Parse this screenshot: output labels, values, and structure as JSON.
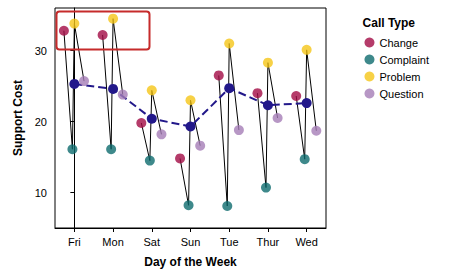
{
  "chart_data": {
    "type": "scatter",
    "x_label": "Day of the Week",
    "y_label": "Support Cost",
    "legend_title": "Call Type",
    "categories": [
      "Fri",
      "Mon",
      "Sat",
      "Sun",
      "Tue",
      "Thur",
      "Wed"
    ],
    "series": [
      {
        "name": "Change",
        "color": "#a30b45",
        "values": [
          32.8,
          32.2,
          19.8,
          14.8,
          26.5,
          24.0,
          23.6
        ]
      },
      {
        "name": "Complaint",
        "color": "#0e6b6e",
        "values": [
          16.1,
          16.1,
          14.5,
          8.2,
          8.1,
          10.7,
          14.7
        ]
      },
      {
        "name": "Problem",
        "color": "#f5c518",
        "values": [
          33.8,
          34.5,
          24.4,
          23.0,
          31.0,
          28.3,
          30.1
        ]
      },
      {
        "name": "Question",
        "color": "#a57db6",
        "values": [
          25.7,
          23.8,
          18.2,
          16.6,
          18.8,
          20.5,
          18.7
        ]
      }
    ],
    "means": [
      25.3,
      24.6,
      20.4,
      19.3,
      24.7,
      22.3,
      22.6
    ],
    "color": "#22188a",
    "ylim": [
      5,
      36
    ],
    "yticks": [
      10,
      20,
      30
    ],
    "grid": false,
    "legend": "right"
  }
}
